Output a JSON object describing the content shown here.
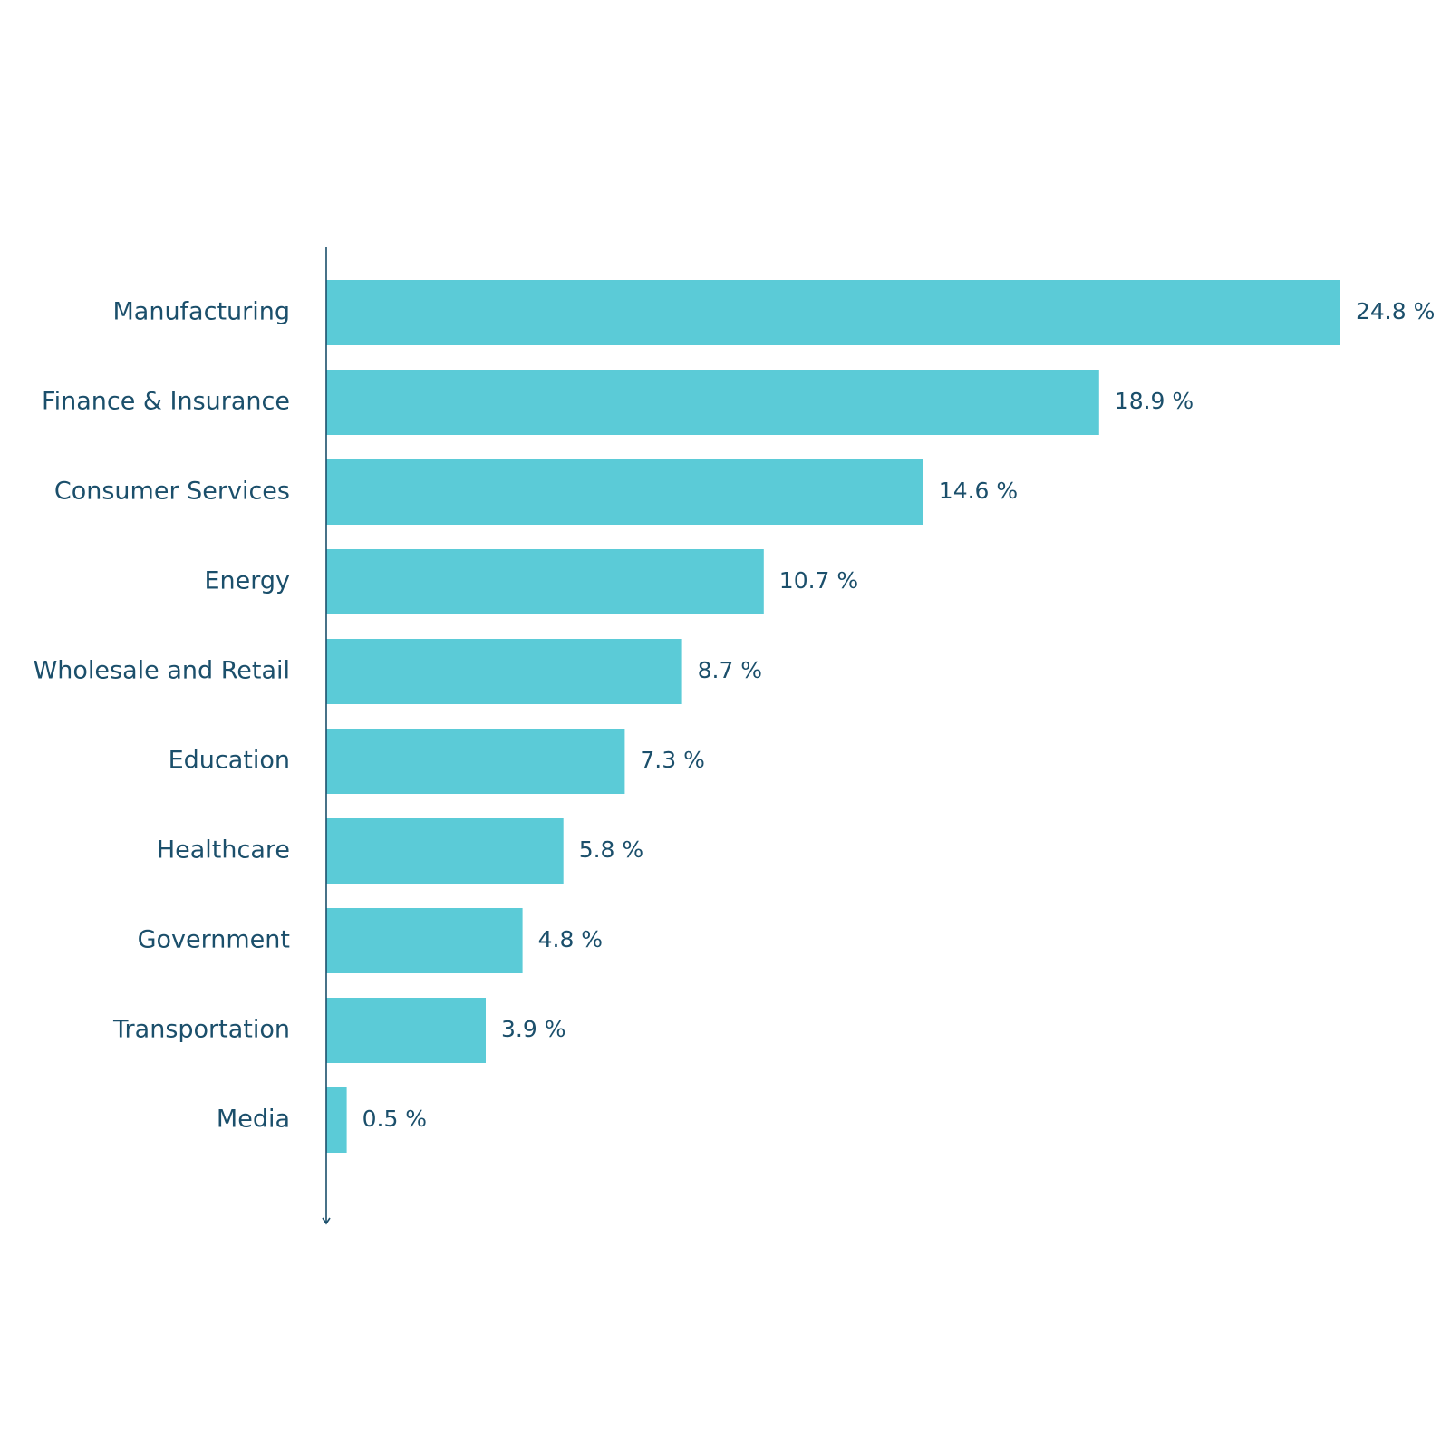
{
  "colors": {
    "bar": "#5bcbd7",
    "text": "#1b4f6b",
    "axis": "#1b4f6b",
    "background": "#ffffff"
  },
  "chart_data": {
    "type": "bar",
    "orientation": "horizontal",
    "categories": [
      "Manufacturing",
      "Finance & Insurance",
      "Consumer Services",
      "Energy",
      "Wholesale and Retail",
      "Education",
      "Healthcare",
      "Government",
      "Transportation",
      "Media"
    ],
    "values": [
      24.8,
      18.9,
      14.6,
      10.7,
      8.7,
      7.3,
      5.8,
      4.8,
      3.9,
      0.5
    ],
    "value_labels": [
      "24.8 %",
      "18.9 %",
      "14.6 %",
      "10.7 %",
      "8.7 %",
      "7.3 %",
      "5.8 %",
      "4.8 %",
      "3.9 %",
      "0.5 %"
    ],
    "unit": "%",
    "title": "",
    "xlabel": "",
    "ylabel": "",
    "grid": false,
    "legend": "none",
    "sort": "descending"
  }
}
